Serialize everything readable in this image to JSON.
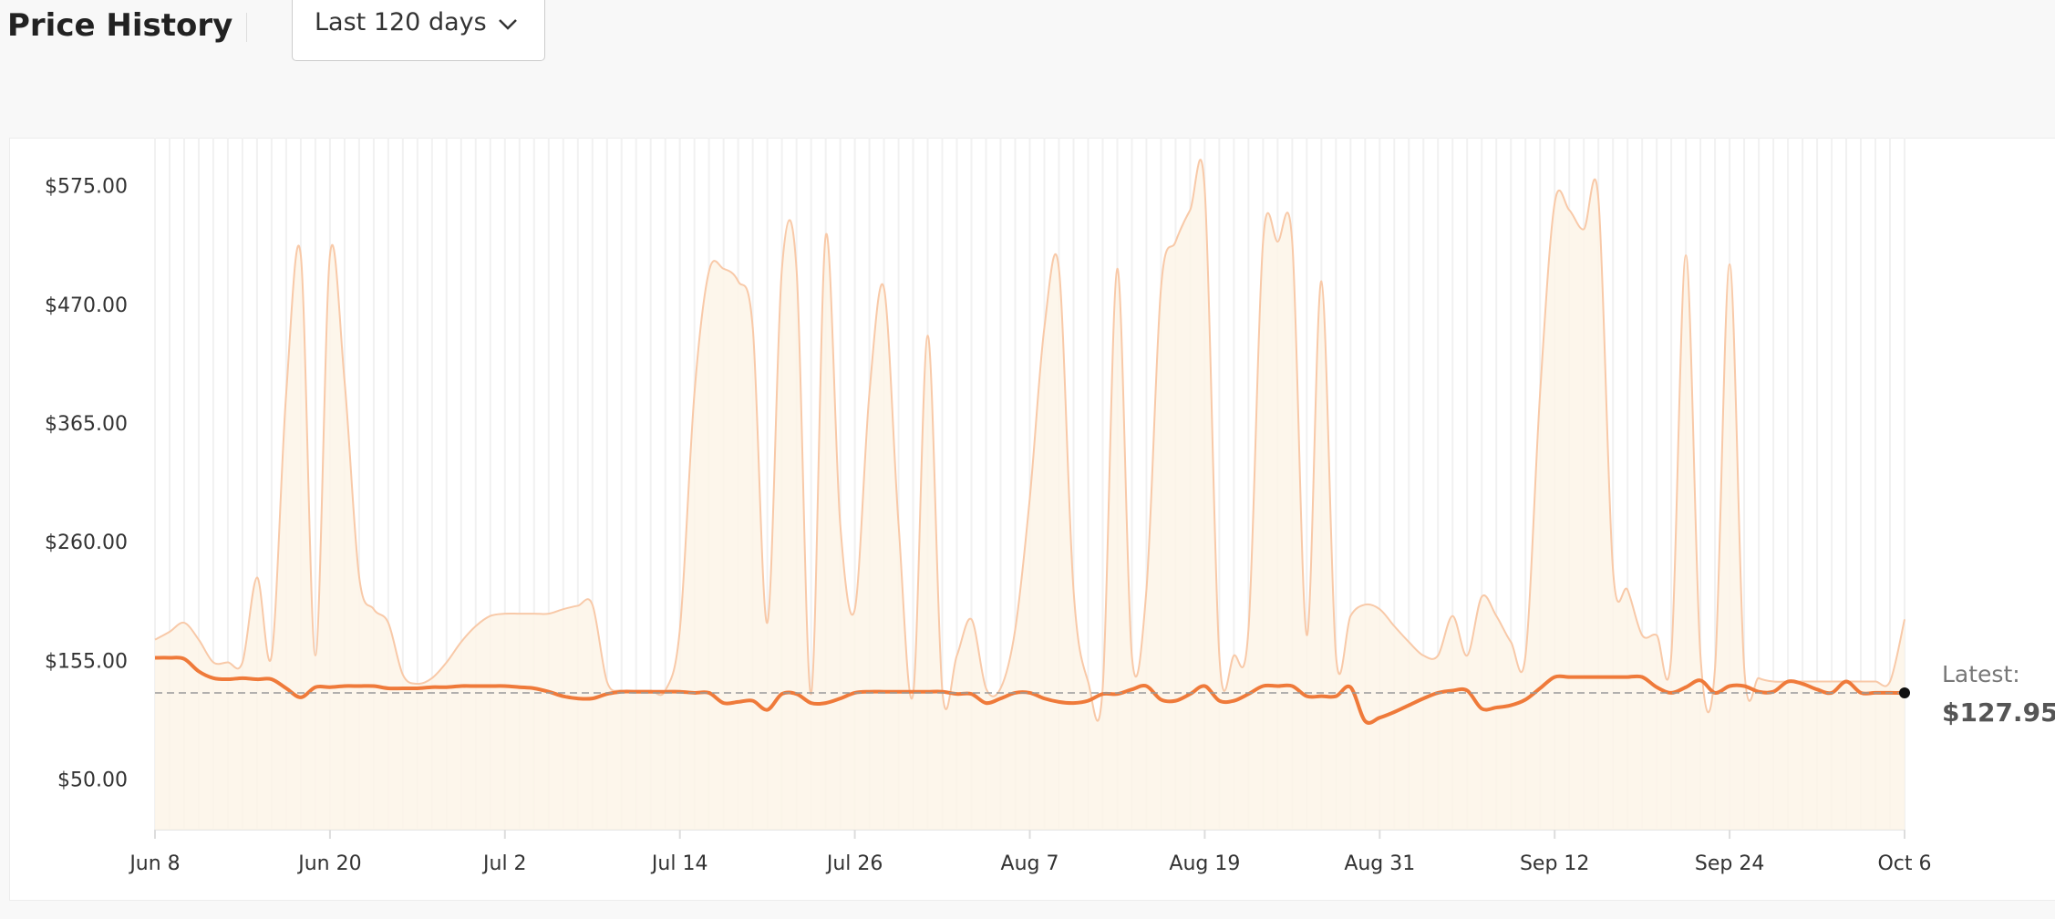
{
  "header": {
    "title": "Price History",
    "range_select": "Last 120 days"
  },
  "chart_data": {
    "type": "line",
    "categories": [
      "Jun 8",
      null,
      null,
      null,
      null,
      null,
      null,
      null,
      null,
      null,
      null,
      null,
      "Jun 20",
      null,
      null,
      null,
      null,
      null,
      null,
      null,
      null,
      null,
      null,
      null,
      "Jul 2",
      null,
      null,
      null,
      null,
      null,
      null,
      null,
      null,
      null,
      null,
      null,
      "Jul 14",
      null,
      null,
      null,
      null,
      null,
      null,
      null,
      null,
      null,
      null,
      null,
      "Jul 26",
      null,
      null,
      null,
      null,
      null,
      null,
      null,
      null,
      null,
      null,
      null,
      "Aug 7",
      null,
      null,
      null,
      null,
      null,
      null,
      null,
      null,
      null,
      null,
      null,
      "Aug 19",
      null,
      null,
      null,
      null,
      null,
      null,
      null,
      null,
      null,
      null,
      null,
      "Aug 31",
      null,
      null,
      null,
      null,
      null,
      null,
      null,
      null,
      null,
      null,
      null,
      "Sep 12",
      null,
      null,
      null,
      null,
      null,
      null,
      null,
      null,
      null,
      null,
      null,
      "Sep 24",
      null,
      null,
      null,
      null,
      null,
      null,
      null,
      null,
      null,
      null,
      null,
      "Oct 6"
    ],
    "series": [
      {
        "color": "#f8c9a8",
        "fill": "#fdf5e8",
        "values": [
          175,
          182,
          190,
          175,
          155,
          155,
          155,
          230,
          161,
          393,
          515,
          161,
          515,
          404,
          231,
          202,
          190,
          144,
          136,
          141,
          155,
          173,
          187,
          196,
          198,
          198,
          198,
          198,
          202,
          205,
          206,
          138,
          130,
          130,
          130,
          130,
          184,
          393,
          501,
          503,
          492,
          451,
          190,
          503,
          503,
          127,
          532,
          277,
          202,
          393,
          486,
          277,
          127,
          444,
          130,
          161,
          193,
          132,
          132,
          184,
          300,
          451,
          503,
          219,
          138,
          132,
          503,
          161,
          219,
          486,
          527,
          555,
          573,
          161,
          161,
          184,
          527,
          527,
          527,
          179,
          492,
          161,
          196,
          206,
          202,
          187,
          173,
          161,
          161,
          196,
          161,
          213,
          196,
          173,
          161,
          393,
          561,
          555,
          538,
          565,
          237,
          219,
          179,
          179,
          161,
          515,
          161,
          150,
          507,
          150,
          141,
          138,
          138,
          138,
          138,
          138,
          138,
          138,
          138,
          138,
          193
        ]
      },
      {
        "color": "#ef7a3a",
        "values": [
          159,
          159,
          158,
          147,
          141,
          140,
          141,
          140,
          140,
          132,
          124,
          133,
          133,
          134,
          134,
          134,
          132,
          132,
          132,
          133,
          133,
          134,
          134,
          134,
          134,
          133,
          132,
          129,
          125,
          123,
          123,
          127,
          129,
          129,
          129,
          129,
          129,
          128,
          128,
          119,
          120,
          121,
          113,
          127,
          127,
          119,
          119,
          123,
          128,
          129,
          129,
          129,
          129,
          129,
          129,
          127,
          127,
          119,
          123,
          128,
          128,
          123,
          120,
          119,
          121,
          127,
          127,
          131,
          134,
          122,
          121,
          127,
          134,
          121,
          121,
          127,
          134,
          134,
          134,
          125,
          125,
          125,
          133,
          103,
          106,
          111,
          117,
          123,
          128,
          130,
          130,
          114,
          115,
          117,
          122,
          132,
          142,
          142,
          142,
          142,
          142,
          142,
          142,
          133,
          128,
          133,
          139,
          128,
          134,
          134,
          129,
          129,
          138,
          136,
          131,
          128,
          138,
          128,
          128,
          128,
          127.95
        ]
      }
    ],
    "ylim": [
      7,
      619
    ],
    "yticks": [
      {
        "value": 50,
        "label": "$50.00"
      },
      {
        "value": 155,
        "label": "$155.00"
      },
      {
        "value": 260,
        "label": "$260.00"
      },
      {
        "value": 365,
        "label": "$365.00"
      },
      {
        "value": 470,
        "label": "$470.00"
      },
      {
        "value": 575,
        "label": "$575.00"
      }
    ],
    "latest_label": "Latest:",
    "latest_value": 127.95,
    "latest_value_label": "$127.95",
    "latest_color": "#111111"
  }
}
